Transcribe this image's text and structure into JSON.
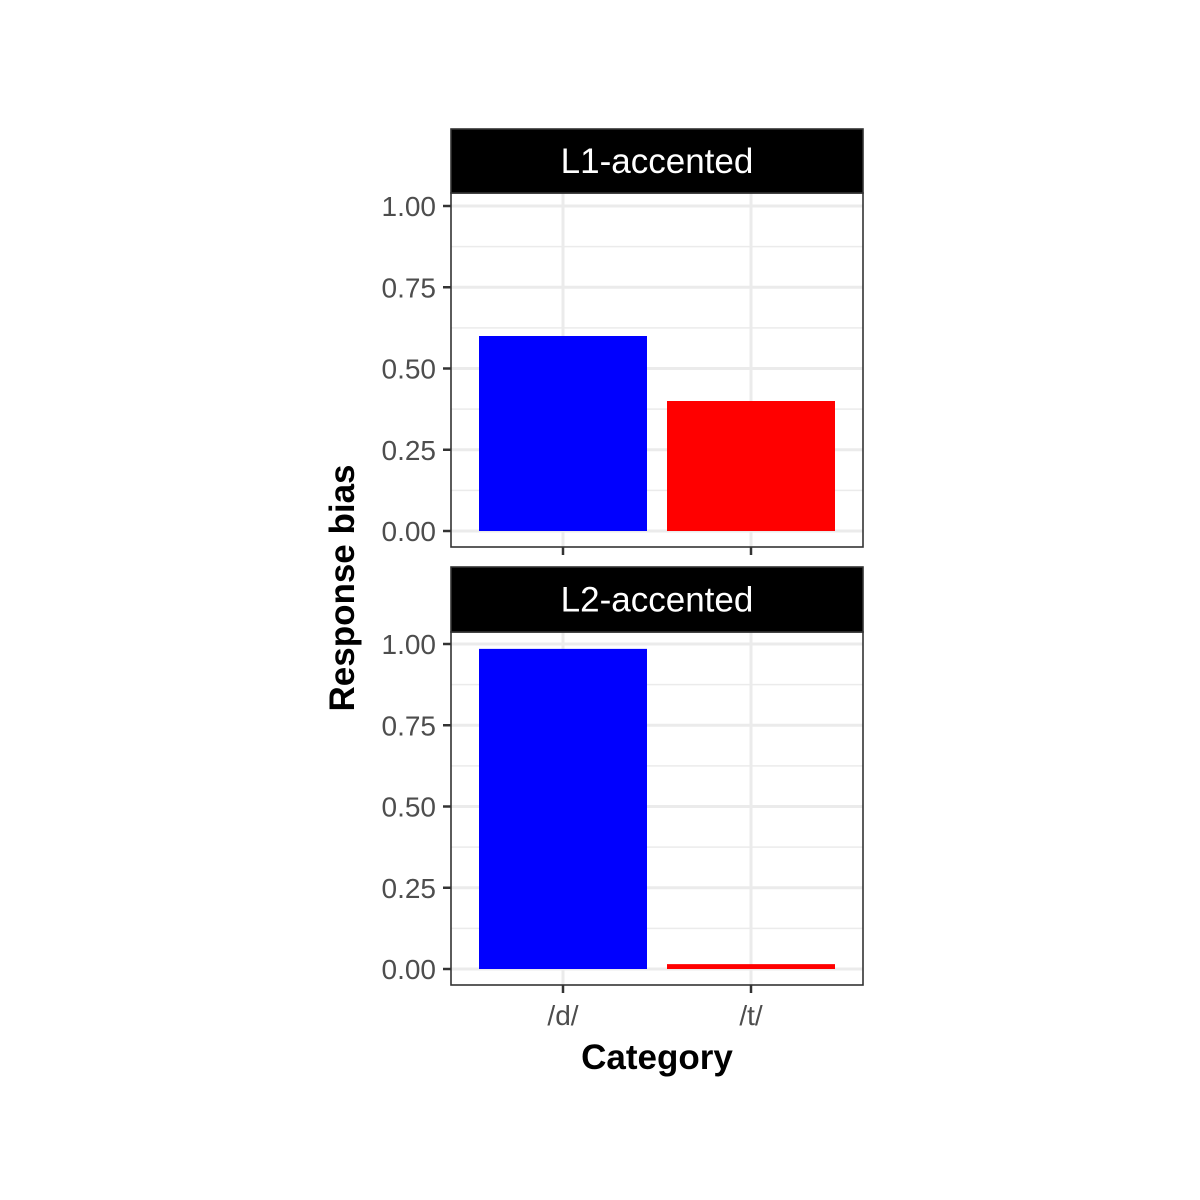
{
  "chart_data": {
    "type": "bar",
    "xlabel": "Category",
    "ylabel": "Response bias",
    "categories": [
      "/d/",
      "/t/"
    ],
    "ylim": [
      0,
      1
    ],
    "yticks": [
      "0.00",
      "0.25",
      "0.50",
      "0.75",
      "1.00"
    ],
    "grid": true,
    "colors": {
      "/d/": "#0000ff",
      "/t/": "#ff0000"
    },
    "panels": [
      {
        "name": "L1-accented",
        "values": [
          0.6,
          0.4
        ]
      },
      {
        "name": "L2-accented",
        "values": [
          0.985,
          0.015
        ]
      }
    ]
  }
}
